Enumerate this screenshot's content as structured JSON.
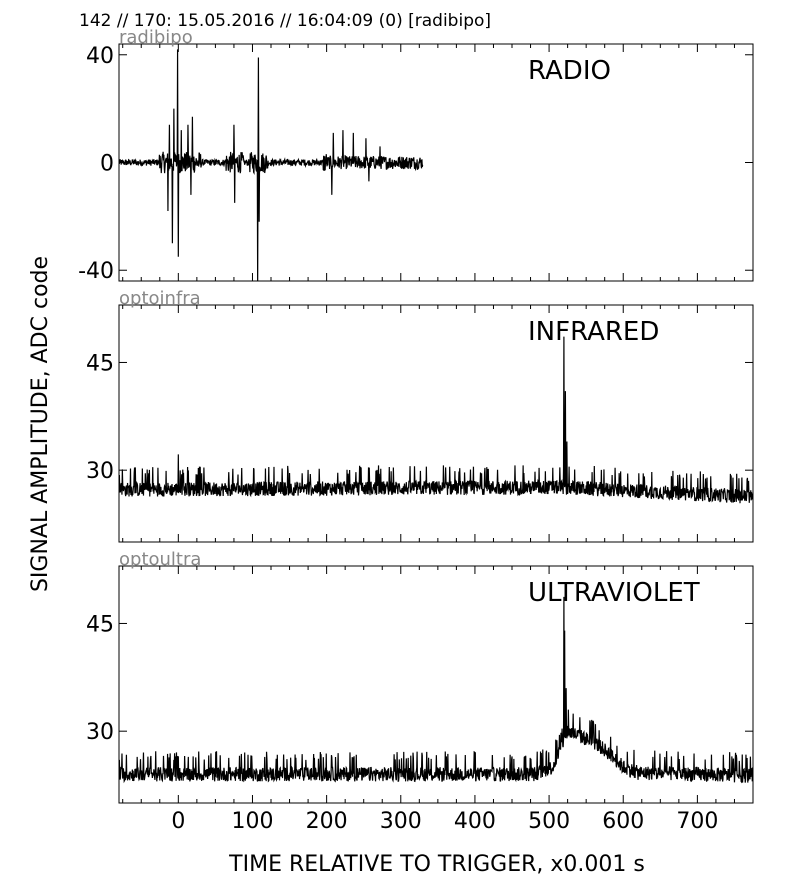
{
  "header": {
    "title": "142 // 170:   15.05.2016 // 16:04:09 (0)  [radibipo]"
  },
  "axes": {
    "ylabel": "SIGNAL AMPLITUDE,  ADC code",
    "xlabel": "TIME RELATIVE TO TRIGGER,   x0.001 s",
    "xlim": [
      -80,
      775
    ],
    "xticks": [
      0,
      100,
      200,
      300,
      400,
      500,
      600,
      700
    ],
    "xtick_labels": [
      "0",
      "100",
      "200",
      "300",
      "400",
      "500",
      "600",
      "700"
    ]
  },
  "chart_data": [
    {
      "type": "line",
      "channel": "radibipo",
      "label": "RADIO",
      "ylim": [
        -44,
        44
      ],
      "yticks": [
        -40,
        0,
        40
      ],
      "ytick_labels": [
        "-40",
        "0",
        "40"
      ],
      "series_color": "#000000",
      "trace": {
        "x_start": -80,
        "x_end": 330,
        "baseline": 0,
        "noise": 1.0,
        "spikes": [
          {
            "x": -14,
            "y": -18
          },
          {
            "x": -12,
            "y": 14
          },
          {
            "x": -8,
            "y": -30
          },
          {
            "x": -6,
            "y": 20
          },
          {
            "x": -1,
            "y": 42
          },
          {
            "x": 0,
            "y": -35
          },
          {
            "x": 4,
            "y": 12
          },
          {
            "x": 13,
            "y": 14
          },
          {
            "x": 17,
            "y": -12
          },
          {
            "x": 19,
            "y": 17
          },
          {
            "x": 75,
            "y": 14
          },
          {
            "x": 76,
            "y": -15
          },
          {
            "x": 107,
            "y": -46
          },
          {
            "x": 108,
            "y": 39
          },
          {
            "x": 109,
            "y": -22
          },
          {
            "x": 207,
            "y": -12
          },
          {
            "x": 209,
            "y": 11
          },
          {
            "x": 222,
            "y": 12
          },
          {
            "x": 236,
            "y": 11
          },
          {
            "x": 253,
            "y": 9
          },
          {
            "x": 257,
            "y": -7
          },
          {
            "x": 272,
            "y": 6
          }
        ]
      }
    },
    {
      "type": "line",
      "channel": "optoinfra",
      "label": "INFRARED",
      "ylim": [
        20,
        53
      ],
      "yticks": [
        30,
        45
      ],
      "ytick_labels": [
        "30",
        "45"
      ],
      "series_color": "#000000",
      "trace": {
        "x_start": -80,
        "x_end": 775,
        "baseline_points": [
          [
            -80,
            27.3
          ],
          [
            500,
            27.6
          ],
          [
            520,
            27.6
          ],
          [
            775,
            26.3
          ]
        ],
        "noise": 1.0,
        "spikes": [
          {
            "x": 0,
            "y": 32.2
          },
          {
            "x": 520,
            "y": 48.6
          },
          {
            "x": 522,
            "y": 41
          },
          {
            "x": 524,
            "y": 34
          },
          {
            "x": 527,
            "y": 30.5
          }
        ]
      }
    },
    {
      "type": "line",
      "channel": "optoultra",
      "label": "ULTRAVIOLET",
      "ylim": [
        20,
        53
      ],
      "yticks": [
        30,
        45
      ],
      "ytick_labels": [
        "30",
        "45"
      ],
      "series_color": "#000000",
      "trace": {
        "x_start": -80,
        "x_end": 775,
        "baseline_points": [
          [
            -80,
            24.0
          ],
          [
            480,
            24.0
          ],
          [
            505,
            25
          ],
          [
            515,
            27.5
          ],
          [
            525,
            30
          ],
          [
            560,
            28.5
          ],
          [
            580,
            27
          ],
          [
            600,
            25
          ],
          [
            620,
            24.2
          ],
          [
            775,
            23.8
          ]
        ],
        "noise": 1.0,
        "spikes": [
          {
            "x": 520,
            "y": 48.7
          },
          {
            "x": 521,
            "y": 44
          },
          {
            "x": 523,
            "y": 36
          },
          {
            "x": 526,
            "y": 33
          },
          {
            "x": 0,
            "y": 26.5
          }
        ]
      }
    }
  ]
}
